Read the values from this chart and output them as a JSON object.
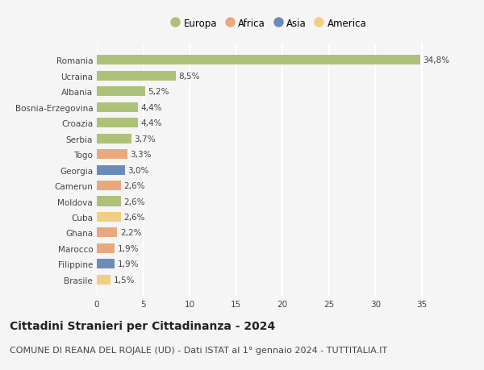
{
  "countries": [
    "Romania",
    "Ucraina",
    "Albania",
    "Bosnia-Erzegovina",
    "Croazia",
    "Serbia",
    "Togo",
    "Georgia",
    "Camerun",
    "Moldova",
    "Cuba",
    "Ghana",
    "Marocco",
    "Filippine",
    "Brasile"
  ],
  "values": [
    34.8,
    8.5,
    5.2,
    4.4,
    4.4,
    3.7,
    3.3,
    3.0,
    2.6,
    2.6,
    2.6,
    2.2,
    1.9,
    1.9,
    1.5
  ],
  "labels": [
    "34,8%",
    "8,5%",
    "5,2%",
    "4,4%",
    "4,4%",
    "3,7%",
    "3,3%",
    "3,0%",
    "2,6%",
    "2,6%",
    "2,6%",
    "2,2%",
    "1,9%",
    "1,9%",
    "1,5%"
  ],
  "continents": [
    "Europa",
    "Europa",
    "Europa",
    "Europa",
    "Europa",
    "Europa",
    "Africa",
    "Asia",
    "Africa",
    "Europa",
    "America",
    "Africa",
    "Africa",
    "Asia",
    "America"
  ],
  "colors": {
    "Europa": "#adc178",
    "Africa": "#e8a97e",
    "Asia": "#6b8cba",
    "America": "#f0d080"
  },
  "legend_order": [
    "Europa",
    "Africa",
    "Asia",
    "America"
  ],
  "xlim": [
    0,
    37
  ],
  "xticks": [
    0,
    5,
    10,
    15,
    20,
    25,
    30,
    35
  ],
  "title": "Cittadini Stranieri per Cittadinanza - 2024",
  "subtitle": "COMUNE DI REANA DEL ROJALE (UD) - Dati ISTAT al 1° gennaio 2024 - TUTTITALIA.IT",
  "bg_color": "#f5f5f5",
  "bar_height": 0.62,
  "grid_color": "#ffffff",
  "title_fontsize": 10,
  "subtitle_fontsize": 8,
  "label_fontsize": 7.5,
  "tick_fontsize": 7.5,
  "legend_fontsize": 8.5
}
